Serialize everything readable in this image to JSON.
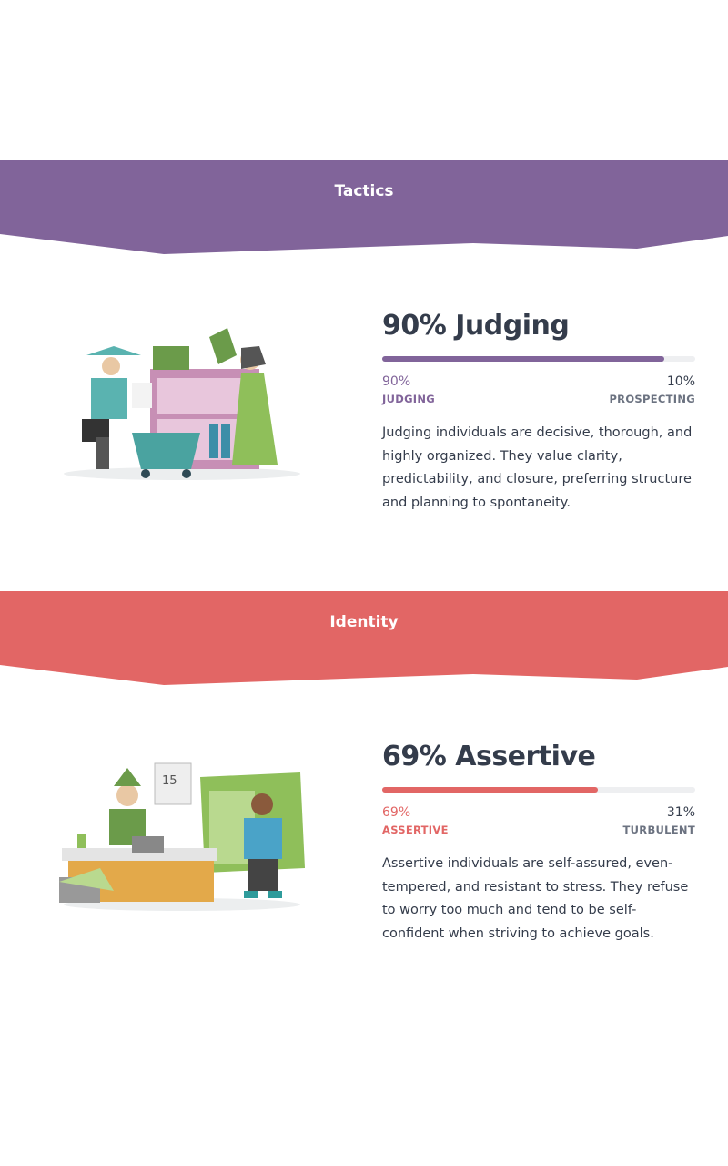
{
  "sections": [
    {
      "banner_title": "Tactics",
      "color": "#81649a",
      "heading": "90% Judging",
      "percent": 90,
      "left_pct": "90%",
      "right_pct": "10%",
      "left_label": "JUDGING",
      "right_label": "PROSPECTING",
      "description": "Judging individuals are decisive, thorough, and highly organized. They value clarity, predictability, and closure, preferring structure and planning to spontaneity."
    },
    {
      "banner_title": "Identity",
      "color": "#e26665",
      "heading": "69% Assertive",
      "percent": 69,
      "left_pct": "69%",
      "right_pct": "31%",
      "left_label": "ASSERTIVE",
      "right_label": "TURBULENT",
      "description": "Assertive individuals are self-assured, even-tempered, and resistant to stress. They refuse to worry too much and tend to be self-confident when striving to achieve goals.",
      "calendar_day": "15"
    }
  ]
}
